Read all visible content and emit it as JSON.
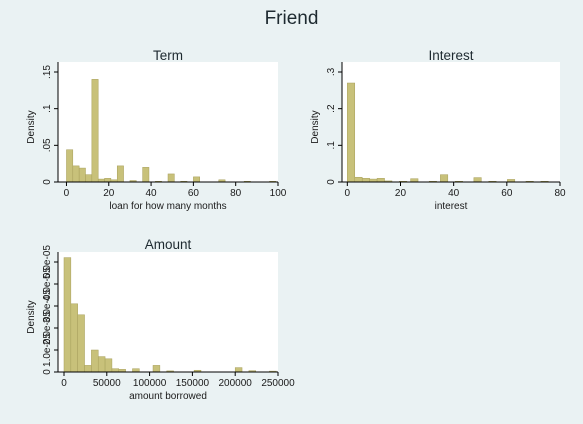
{
  "figure": {
    "title": "Friend"
  },
  "colors": {
    "background": "#eaf2f3",
    "plot_bg": "#ffffff",
    "bar_fill": "#c8c17a",
    "bar_stroke": "#a79f5a",
    "axis": "#000000"
  },
  "chart_data": [
    {
      "type": "bar",
      "title": "Term",
      "xlabel": "loan for how many months",
      "ylabel": "Density",
      "xlim": [
        -4,
        100
      ],
      "ylim": [
        0,
        0.15
      ],
      "xticks": [
        0,
        20,
        40,
        60,
        80,
        100
      ],
      "xtick_labels": [
        "0",
        "20",
        "40",
        "60",
        "80",
        "100"
      ],
      "yticks": [
        0,
        0.05,
        0.1,
        0.15
      ],
      "ytick_labels": [
        "0",
        ".05",
        ".1",
        ".15"
      ],
      "bin_width": 3,
      "bins": [
        {
          "x": 0,
          "y": 0.044
        },
        {
          "x": 3,
          "y": 0.022
        },
        {
          "x": 6,
          "y": 0.019
        },
        {
          "x": 9,
          "y": 0.01
        },
        {
          "x": 12,
          "y": 0.14
        },
        {
          "x": 15,
          "y": 0.004
        },
        {
          "x": 18,
          "y": 0.005
        },
        {
          "x": 21,
          "y": 0.003
        },
        {
          "x": 24,
          "y": 0.022
        },
        {
          "x": 30,
          "y": 0.002
        },
        {
          "x": 36,
          "y": 0.02
        },
        {
          "x": 42,
          "y": 0.001
        },
        {
          "x": 48,
          "y": 0.011
        },
        {
          "x": 54,
          "y": 0.001
        },
        {
          "x": 60,
          "y": 0.007
        },
        {
          "x": 72,
          "y": 0.003
        },
        {
          "x": 84,
          "y": 0.001
        },
        {
          "x": 96,
          "y": 0.001
        }
      ]
    },
    {
      "type": "bar",
      "title": "Interest",
      "xlabel": "interest",
      "ylabel": "Density",
      "xlim": [
        -2,
        80
      ],
      "ylim": [
        0,
        0.3
      ],
      "xticks": [
        0,
        20,
        40,
        60,
        80
      ],
      "xtick_labels": [
        "0",
        "20",
        "40",
        "60",
        "80"
      ],
      "yticks": [
        0,
        0.1,
        0.2,
        0.3
      ],
      "ytick_labels": [
        "0",
        ".1",
        ".2",
        ".3"
      ],
      "bin_width": 2.8,
      "bins": [
        {
          "x": 0,
          "y": 0.27
        },
        {
          "x": 2.8,
          "y": 0.013
        },
        {
          "x": 5.6,
          "y": 0.01
        },
        {
          "x": 8.4,
          "y": 0.008
        },
        {
          "x": 11.2,
          "y": 0.01
        },
        {
          "x": 14,
          "y": 0.003
        },
        {
          "x": 19.6,
          "y": 0.002
        },
        {
          "x": 23.8,
          "y": 0.009
        },
        {
          "x": 30.8,
          "y": 0.002
        },
        {
          "x": 35,
          "y": 0.02
        },
        {
          "x": 40.6,
          "y": 0.002
        },
        {
          "x": 47.6,
          "y": 0.012
        },
        {
          "x": 53.2,
          "y": 0.002
        },
        {
          "x": 60.2,
          "y": 0.007
        },
        {
          "x": 67.2,
          "y": 0.002
        },
        {
          "x": 72.8,
          "y": 0.002
        }
      ]
    },
    {
      "type": "bar",
      "title": "Amount",
      "xlabel": "amount borrowed",
      "ylabel": "Density",
      "xlim": [
        -7000,
        250000
      ],
      "ylim": [
        0,
        5e-05
      ],
      "xticks": [
        0,
        50000,
        100000,
        150000,
        200000,
        250000
      ],
      "xtick_labels": [
        "0",
        "50000",
        "100000",
        "150000",
        "200000",
        "250000"
      ],
      "yticks": [
        0,
        1e-05,
        2e-05,
        3e-05,
        4e-05,
        5e-05
      ],
      "ytick_labels": [
        "0",
        "1.0e-05",
        "2.0e-05",
        "3.0e-05",
        "4.0e-05",
        "5.0e-05"
      ],
      "bin_width": 8000,
      "bins": [
        {
          "x": 0,
          "y": 5.2e-05
        },
        {
          "x": 8000,
          "y": 3.1e-05
        },
        {
          "x": 16000,
          "y": 2.6e-05
        },
        {
          "x": 24000,
          "y": 3e-06
        },
        {
          "x": 32000,
          "y": 1e-05
        },
        {
          "x": 40000,
          "y": 7e-06
        },
        {
          "x": 48000,
          "y": 6e-06
        },
        {
          "x": 56000,
          "y": 1.5e-06
        },
        {
          "x": 64000,
          "y": 1.2e-06
        },
        {
          "x": 80000,
          "y": 1.5e-06
        },
        {
          "x": 104000,
          "y": 3e-06
        },
        {
          "x": 120000,
          "y": 5e-07
        },
        {
          "x": 152000,
          "y": 8e-07
        },
        {
          "x": 200000,
          "y": 2e-06
        },
        {
          "x": 216000,
          "y": 6e-07
        },
        {
          "x": 240000,
          "y": 4e-07
        }
      ]
    }
  ]
}
